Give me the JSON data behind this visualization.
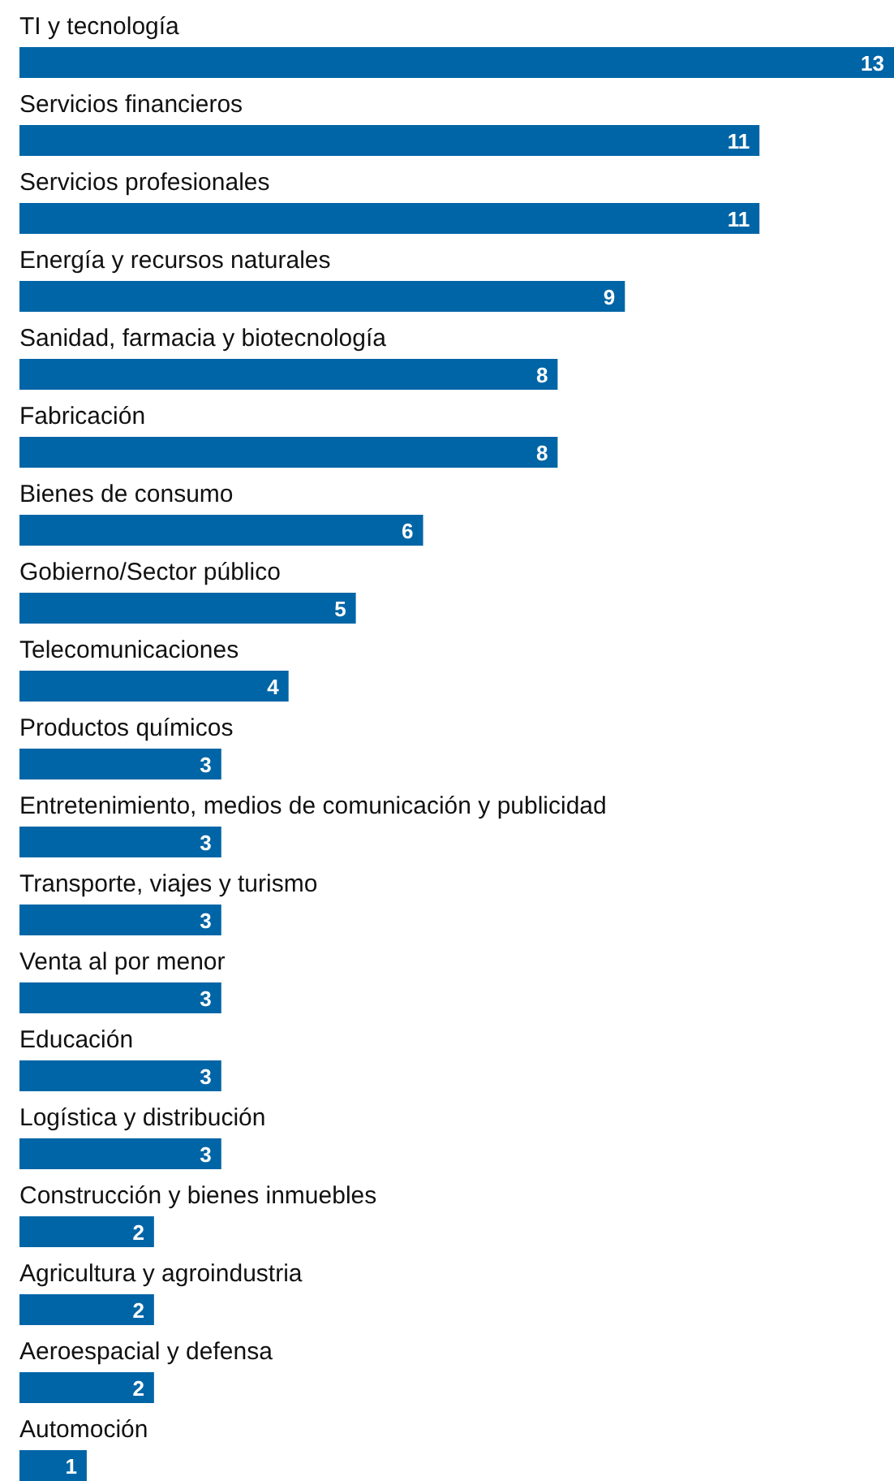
{
  "chart_data": {
    "type": "bar",
    "orientation": "horizontal",
    "categories": [
      "TI y tecnología",
      "Servicios financieros",
      "Servicios profesionales",
      "Energía y recursos naturales",
      "Sanidad, farmacia y biotecnología",
      "Fabricación",
      "Bienes de consumo",
      "Gobierno/Sector público",
      "Telecomunicaciones",
      "Productos químicos",
      "Entretenimiento, medios de comunicación y publicidad",
      "Transporte, viajes y turismo",
      "Venta al por menor",
      "Educación",
      "Logística y distribución",
      "Construcción y bienes inmuebles",
      "Agricultura y agroindustria",
      "Aeroespacial y defensa",
      "Automoción"
    ],
    "values": [
      13,
      11,
      11,
      9,
      8,
      8,
      6,
      5,
      4,
      3,
      3,
      3,
      3,
      3,
      3,
      2,
      2,
      2,
      1
    ],
    "color": "#0065a6",
    "data_labels": true
  }
}
